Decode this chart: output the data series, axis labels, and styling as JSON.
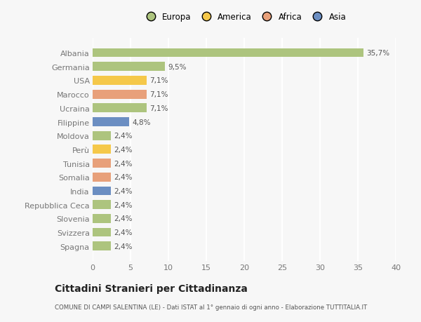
{
  "categories": [
    "Spagna",
    "Svizzera",
    "Slovenia",
    "Repubblica Ceca",
    "India",
    "Somalia",
    "Tunisia",
    "Perù",
    "Moldova",
    "Filippine",
    "Ucraina",
    "Marocco",
    "USA",
    "Germania",
    "Albania"
  ],
  "values": [
    2.4,
    2.4,
    2.4,
    2.4,
    2.4,
    2.4,
    2.4,
    2.4,
    2.4,
    4.8,
    7.1,
    7.1,
    7.1,
    9.5,
    35.7
  ],
  "labels": [
    "2,4%",
    "2,4%",
    "2,4%",
    "2,4%",
    "2,4%",
    "2,4%",
    "2,4%",
    "2,4%",
    "2,4%",
    "4,8%",
    "7,1%",
    "7,1%",
    "7,1%",
    "9,5%",
    "35,7%"
  ],
  "colors": [
    "#adc47e",
    "#adc47e",
    "#adc47e",
    "#adc47e",
    "#6b8ec2",
    "#e8a07a",
    "#e8a07a",
    "#f5c84a",
    "#adc47e",
    "#6b8ec2",
    "#adc47e",
    "#e8a07a",
    "#f5c84a",
    "#adc47e",
    "#adc47e"
  ],
  "legend_labels": [
    "Europa",
    "America",
    "Africa",
    "Asia"
  ],
  "legend_colors": [
    "#adc47e",
    "#f5c84a",
    "#e8a07a",
    "#6b8ec2"
  ],
  "xlim": [
    0,
    40
  ],
  "xticks": [
    0,
    5,
    10,
    15,
    20,
    25,
    30,
    35,
    40
  ],
  "title": "Cittadini Stranieri per Cittadinanza",
  "subtitle": "COMUNE DI CAMPI SALENTINA (LE) - Dati ISTAT al 1° gennaio di ogni anno - Elaborazione TUTTITALIA.IT",
  "background_color": "#f7f7f7",
  "bar_height": 0.65,
  "grid_color": "#ffffff",
  "text_color": "#777777",
  "label_color": "#555555"
}
